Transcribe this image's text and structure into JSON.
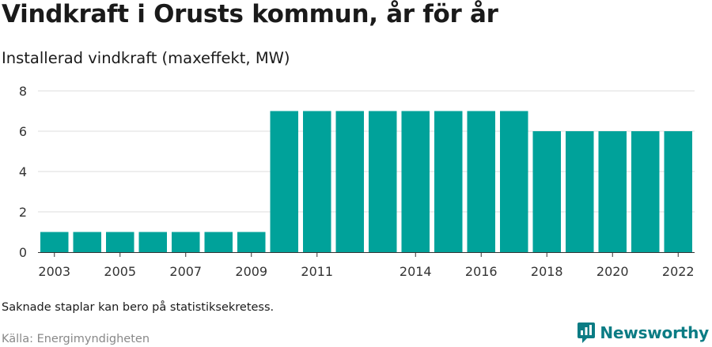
{
  "header": {
    "title": "Vindkraft i Orusts kommun, år för år",
    "subtitle": "Installerad vindkraft (maxeffekt, MW)"
  },
  "footer": {
    "note": "Saknade staplar kan bero på statistiksekretess.",
    "source": "Källa: Energimyndigheten",
    "brand": "Newsworthy",
    "brand_icon": "newsworthy-logo-icon"
  },
  "colors": {
    "bar": "#00a29a",
    "grid": "#dddddd",
    "brand": "#0b7c84"
  },
  "chart_data": {
    "type": "bar",
    "title": "Vindkraft i Orusts kommun, år för år",
    "subtitle": "Installerad vindkraft (maxeffekt, MW)",
    "xlabel": "",
    "ylabel": "",
    "categories": [
      "2003",
      "2004",
      "2005",
      "2006",
      "2007",
      "2008",
      "2009",
      "2010",
      "2011",
      "2012",
      "2013",
      "2014",
      "2015",
      "2016",
      "2017",
      "2018",
      "2019",
      "2020",
      "2021",
      "2022"
    ],
    "x_tick_labels": [
      "2003",
      "2005",
      "2007",
      "2009",
      "2011",
      "2014",
      "2016",
      "2018",
      "2020",
      "2022"
    ],
    "values": [
      1,
      1,
      1,
      1,
      1,
      1,
      1,
      7,
      7,
      7,
      7,
      7,
      7,
      7,
      7,
      6,
      6,
      6,
      6,
      6
    ],
    "ylim": [
      0,
      8
    ],
    "yticks": [
      0,
      2,
      4,
      6,
      8
    ],
    "grid": true,
    "legend": "none"
  }
}
